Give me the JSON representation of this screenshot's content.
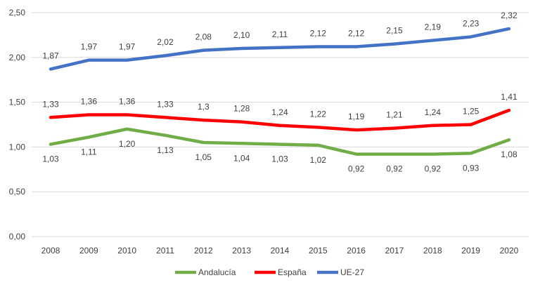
{
  "chart_data": {
    "type": "line",
    "title": "",
    "xlabel": "",
    "ylabel": "",
    "ylim": [
      0,
      2.5
    ],
    "yticks": [
      "0,00",
      "0,50",
      "1,00",
      "1,50",
      "2,00",
      "2,50"
    ],
    "grid": true,
    "legend_position": "bottom",
    "categories": [
      "2008",
      "2009",
      "2010",
      "2011",
      "2012",
      "2013",
      "2014",
      "2015",
      "2016",
      "2017",
      "2018",
      "2019",
      "2020"
    ],
    "series": [
      {
        "name": "Andalucía",
        "color": "#70AD47",
        "label_position": "below",
        "values": [
          1.03,
          1.11,
          1.2,
          1.13,
          1.05,
          1.04,
          1.03,
          1.02,
          0.92,
          0.92,
          0.92,
          0.93,
          1.08
        ],
        "labels": [
          "1,03",
          "1,11",
          "1,20",
          "1,13",
          "1,05",
          "1,04",
          "1,03",
          "1,02",
          "0,92",
          "0,92",
          "0,92",
          "0,93",
          "1,08"
        ]
      },
      {
        "name": "España",
        "color": "#FF0000",
        "label_position": "above",
        "values": [
          1.33,
          1.36,
          1.36,
          1.33,
          1.3,
          1.28,
          1.24,
          1.22,
          1.19,
          1.21,
          1.24,
          1.25,
          1.41
        ],
        "labels": [
          "1,33",
          "1,36",
          "1,36",
          "1,33",
          "1,3",
          "1,28",
          "1,24",
          "1,22",
          "1,19",
          "1,21",
          "1,24",
          "1,25",
          "1,41"
        ]
      },
      {
        "name": "UE-27",
        "color": "#4472C4",
        "label_position": "above",
        "values": [
          1.87,
          1.97,
          1.97,
          2.02,
          2.08,
          2.1,
          2.11,
          2.12,
          2.12,
          2.15,
          2.19,
          2.23,
          2.32
        ],
        "labels": [
          "1,87",
          "1,97",
          "1,97",
          "2,02",
          "2,08",
          "2,10",
          "2,11",
          "2,12",
          "2,12",
          "2,15",
          "2,19",
          "2,23",
          "2,32"
        ]
      }
    ]
  }
}
